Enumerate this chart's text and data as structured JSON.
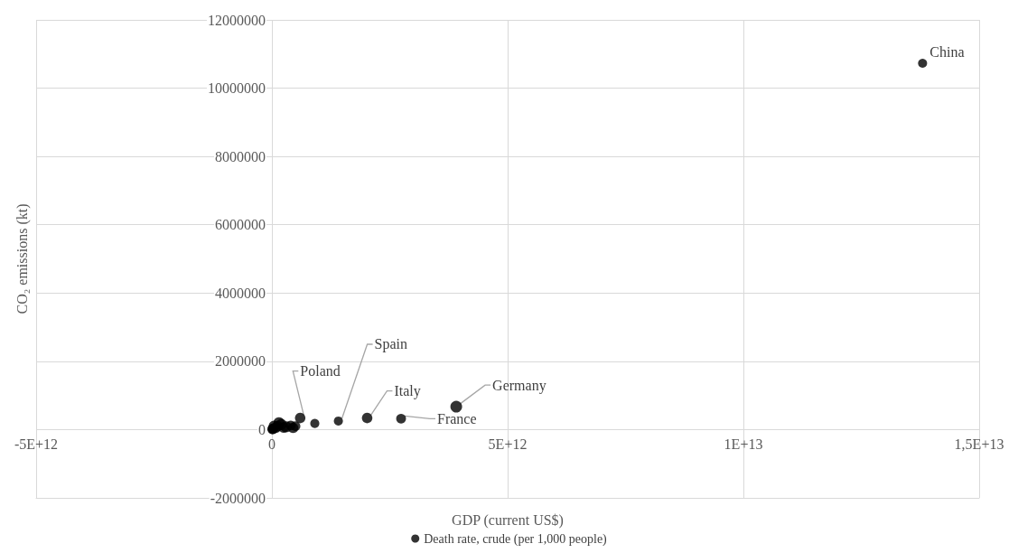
{
  "chart_data": {
    "type": "bubble",
    "xlabel": "GDP (current US$)",
    "ylabel": "CO₂ emissions (kt)",
    "xlim": [
      -5000000000000.0,
      15000000000000.0
    ],
    "xticks": [
      {
        "value": -5000000000000.0,
        "label": "-5E+12"
      },
      {
        "value": 0,
        "label": "0"
      },
      {
        "value": 5000000000000.0,
        "label": "5E+12"
      },
      {
        "value": 10000000000000.0,
        "label": "1E+13"
      },
      {
        "value": 15000000000000.0,
        "label": "1,5E+13"
      }
    ],
    "ylim": [
      -2000000,
      12000000
    ],
    "yticks": [
      -2000000,
      0,
      2000000,
      4000000,
      6000000,
      8000000,
      10000000,
      12000000
    ],
    "grid": true,
    "legend": "bottom",
    "series": [
      {
        "name": "Death rate, crude (per 1,000 people)",
        "color": "#000000",
        "x": [
          13800000000000.0,
          3910000000000.0,
          2740000000000.0,
          2020000000000.0,
          1410000000000.0,
          910000000000.0,
          600000000000.0,
          500000000000.0,
          450000000000.0,
          400000000000.0,
          300000000000.0,
          250000000000.0,
          200000000000.0,
          150000000000.0,
          120000000000.0,
          80000000000.0,
          50000000000.0,
          30000000000.0,
          20000000000.0,
          10000000000.0
        ],
        "values": [
          10730000,
          670000,
          320000,
          340000,
          250000,
          180000,
          340000,
          100000,
          50000,
          120000,
          80000,
          60000,
          150000,
          200000,
          100000,
          50000,
          100000,
          30000,
          20000,
          10000
        ],
        "sizes": [
          0.6,
          1,
          0.7,
          0.8,
          0.6,
          0.6,
          0.8,
          0.7,
          0.8,
          0.7,
          0.9,
          0.8,
          0.9,
          0.9,
          0.8,
          0.8,
          0.9,
          0.7,
          0.8,
          0.7
        ]
      }
    ],
    "annotations": [
      {
        "text": "China",
        "x": 13800000000000.0,
        "y": 10730000
      },
      {
        "text": "Germany",
        "x": 3910000000000.0,
        "y": 670000
      },
      {
        "text": "France",
        "x": 2740000000000.0,
        "y": 320000
      },
      {
        "text": "Italy",
        "x": 2020000000000.0,
        "y": 340000
      },
      {
        "text": "Spain",
        "x": 1410000000000.0,
        "y": 250000
      },
      {
        "text": "Poland",
        "x": 600000000000.0,
        "y": 340000
      }
    ]
  }
}
